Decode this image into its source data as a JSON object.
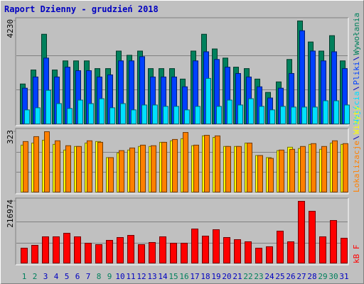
{
  "title": "Raport Dzienny -  grudzień 2018",
  "chart_data": [
    {
      "type": "bar",
      "ylim": [
        0,
        4230
      ],
      "yticks": [
        4230
      ],
      "series": [
        {
          "name": "Wywołania",
          "color": "#00805c",
          "values": [
            1658,
            2229,
            3687,
            2229,
            2601,
            2601,
            2601,
            2286,
            2286,
            3001,
            2829,
            3001,
            2286,
            2286,
            2286,
            1858,
            3001,
            3687,
            3087,
            2715,
            2344,
            2286,
            1858,
            1315,
            1743,
            2658,
            4230,
            3372,
            3001,
            3630,
            2601
          ]
        },
        {
          "name": "Pliki",
          "color": "#0040ff",
          "values": [
            1486,
            1943,
            2715,
            1943,
            2344,
            2201,
            2201,
            1943,
            2029,
            2601,
            2601,
            2772,
            1943,
            1943,
            1943,
            1543,
            2601,
            2972,
            2658,
            2344,
            2086,
            1943,
            1543,
            1086,
            1486,
            2086,
            3830,
            3001,
            2601,
            2972,
            2286
          ]
        },
        {
          "name": "Wejścia",
          "color": "#00e0ff",
          "values": [
            600,
            686,
            1400,
            857,
            657,
            1000,
            857,
            1057,
            686,
            857,
            600,
            800,
            800,
            743,
            743,
            600,
            743,
            1886,
            743,
            1000,
            800,
            1057,
            743,
            600,
            743,
            714,
            714,
            714,
            972,
            972,
            800
          ]
        }
      ]
    },
    {
      "type": "bar",
      "ylim": [
        0,
        323
      ],
      "yticks": [
        323
      ],
      "series": [
        {
          "name": "Wizyty",
          "color": "#ffff00",
          "values": [
            252,
            263,
            278,
            256,
            226,
            245,
            263,
            271,
            186,
            211,
            226,
            245,
            245,
            267,
            275,
            286,
            249,
            301,
            293,
            245,
            245,
            263,
            197,
            186,
            223,
            241,
            234,
            256,
            230,
            263,
            256
          ]
        },
        {
          "name": "Lokalizacje",
          "color": "#ff8000",
          "values": [
            271,
            297,
            323,
            275,
            249,
            245,
            275,
            267,
            186,
            223,
            237,
            252,
            249,
            267,
            282,
            319,
            252,
            304,
            301,
            245,
            245,
            263,
            197,
            182,
            226,
            230,
            245,
            260,
            245,
            275,
            260
          ]
        }
      ]
    },
    {
      "type": "bar",
      "ylim": [
        0,
        216974
      ],
      "yticks": [
        216974
      ],
      "series": [
        {
          "name": "kB F",
          "color": "#ff0000",
          "values": [
            54252,
            64116,
            93708,
            93708,
            106038,
            93708,
            71514,
            66582,
            81378,
            91242,
            98640,
            66582,
            73980,
            93708,
            71514,
            71514,
            120834,
            96174,
            118368,
            91242,
            83844,
            76446,
            54252,
            59184,
            113436,
            76446,
            216974,
            182484,
            93708,
            150426,
            88776
          ]
        }
      ],
      "categories": [
        "1",
        "2",
        "3",
        "4",
        "5",
        "6",
        "7",
        "8",
        "9",
        "10",
        "11",
        "12",
        "13",
        "14",
        "15",
        "16",
        "17",
        "18",
        "19",
        "20",
        "21",
        "22",
        "23",
        "24",
        "25",
        "26",
        "27",
        "28",
        "29",
        "30",
        "31"
      ],
      "category_colors": [
        "#00805c",
        "#00805c",
        "#0000c0",
        "#0000c0",
        "#0000c0",
        "#0000c0",
        "#0000c0",
        "#00805c",
        "#00805c",
        "#0000c0",
        "#0000c0",
        "#0000c0",
        "#0000c0",
        "#0000c0",
        "#00805c",
        "#00805c",
        "#0000c0",
        "#0000c0",
        "#0000c0",
        "#0000c0",
        "#0000c0",
        "#00805c",
        "#00805c",
        "#0000c0",
        "#0000c0",
        "#0000c0",
        "#0000c0",
        "#0000c0",
        "#00805c",
        "#00805c",
        "#0000c0"
      ]
    }
  ]
}
